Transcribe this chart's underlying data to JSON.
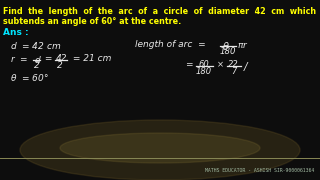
{
  "bg_color": "#0d0d0d",
  "title_color": "#ffff00",
  "ans_color": "#00e5ff",
  "text_color": "#e8e8e8",
  "footer_color": "#a0b8a0",
  "footer_text": "MATHS EDUCATOR - ASHISH SIR-9000061364",
  "title_line1": "Find  the  length  of  the  arc  of  a  circle  of  diameter  42  cm  which",
  "title_line2": "subtends an angle of 60° at the centre.",
  "figsize": [
    3.2,
    1.8
  ],
  "dpi": 100
}
